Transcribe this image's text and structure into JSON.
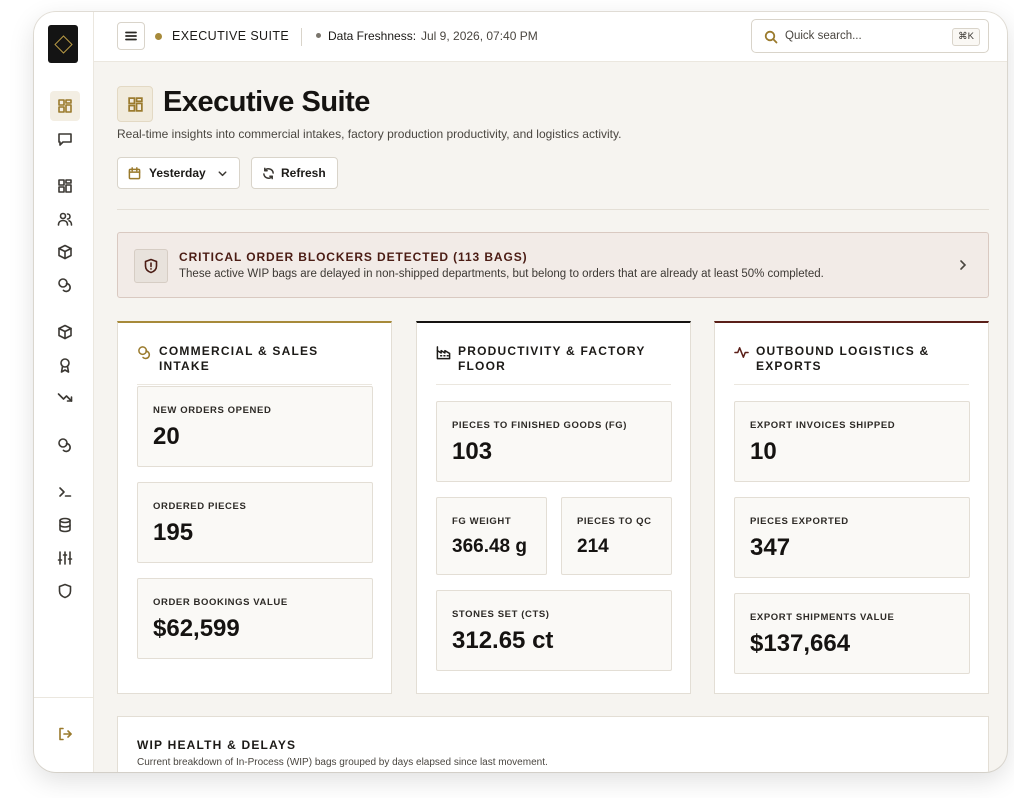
{
  "topbar": {
    "title": "EXECUTIVE SUITE",
    "freshness_label": "Data Freshness:",
    "freshness_value": "Jul 9, 2026, 07:40 PM",
    "search_placeholder": "Quick search...",
    "search_shortcut": "⌘K"
  },
  "sidebar": {
    "items": [
      {
        "icon": "dashboard-icon",
        "active": true
      },
      {
        "icon": "message-icon"
      },
      {
        "icon": "grid-icon"
      },
      {
        "icon": "users-icon"
      },
      {
        "icon": "box-icon"
      },
      {
        "icon": "coins-icon"
      },
      {
        "icon": "package-icon"
      },
      {
        "icon": "award-icon"
      },
      {
        "icon": "trending-down-icon"
      },
      {
        "icon": "coins-icon"
      },
      {
        "icon": "terminal-icon"
      },
      {
        "icon": "database-icon"
      },
      {
        "icon": "sliders-icon"
      },
      {
        "icon": "shield-icon"
      },
      {
        "icon": "logout-icon"
      }
    ]
  },
  "header": {
    "title": "Executive Suite",
    "subtitle": "Real-time insights into commercial intakes, factory production productivity, and logistics activity.",
    "date_filter": "Yesterday",
    "refresh_label": "Refresh"
  },
  "alert": {
    "title": "CRITICAL ORDER BLOCKERS DETECTED (113 BAGS)",
    "text": "These active WIP bags are delayed in non-shipped departments, but belong to orders that are already at least 50% completed."
  },
  "cards": {
    "commercial": {
      "title": "COMMERCIAL & SALES INTAKE",
      "metrics": [
        {
          "label": "NEW ORDERS OPENED",
          "value": "20"
        },
        {
          "label": "ORDERED PIECES",
          "value": "195"
        },
        {
          "label": "ORDER BOOKINGS VALUE",
          "value": "$62,599"
        }
      ]
    },
    "productivity": {
      "title_line1": "PRODUCTIVITY & FACTORY",
      "title_line2": "FLOOR",
      "metrics": [
        {
          "label": "PIECES TO FINISHED GOODS (FG)",
          "value": "103"
        },
        {
          "label": "FG WEIGHT",
          "value": "366.48 g"
        },
        {
          "label": "PIECES TO QC",
          "value": "214"
        },
        {
          "label": "STONES SET (CTS)",
          "value": "312.65 ct"
        }
      ]
    },
    "logistics": {
      "title_line1": "OUTBOUND LOGISTICS &",
      "title_line2": "EXPORTS",
      "metrics": [
        {
          "label": "EXPORT INVOICES SHIPPED",
          "value": "10"
        },
        {
          "label": "PIECES EXPORTED",
          "value": "347"
        },
        {
          "label": "EXPORT SHIPMENTS VALUE",
          "value": "$137,664"
        }
      ]
    }
  },
  "wip": {
    "title": "WIP HEALTH & DELAYS",
    "subtitle": "Current breakdown of In-Process (WIP) bags grouped by days elapsed since last movement."
  },
  "colors": {
    "accent_gold": "#a78a3a",
    "alert_maroon": "#4b1c14",
    "card_border_dark": "#151311",
    "card_border_maroon": "#5a1f18"
  }
}
